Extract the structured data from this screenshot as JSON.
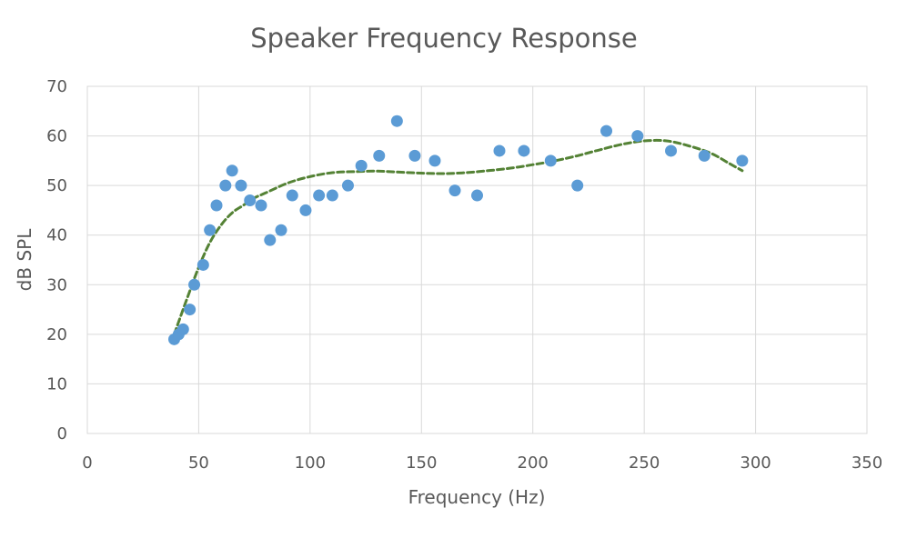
{
  "chart_data": {
    "type": "scatter",
    "title": "Speaker Frequency Response",
    "xlabel": "Frequency (Hz)",
    "ylabel": "dB SPL",
    "xlim": [
      0,
      350
    ],
    "ylim": [
      0,
      70
    ],
    "xticks": [
      0,
      50,
      100,
      150,
      200,
      250,
      300,
      350
    ],
    "yticks": [
      0,
      10,
      20,
      30,
      40,
      50,
      60,
      70
    ],
    "grid": true,
    "legend": "none",
    "colors": {
      "points": "#5b9bd5",
      "trendline": "#548235",
      "text": "#595959",
      "grid": "#d9d9d9"
    },
    "series": [
      {
        "points": [
          [
            39,
            19
          ],
          [
            41,
            20
          ],
          [
            43,
            21
          ],
          [
            46,
            25
          ],
          [
            48,
            30
          ],
          [
            52,
            34
          ],
          [
            55,
            41
          ],
          [
            58,
            46
          ],
          [
            62,
            50
          ],
          [
            65,
            53
          ],
          [
            69,
            50
          ],
          [
            73,
            47
          ],
          [
            78,
            46
          ],
          [
            82,
            39
          ],
          [
            87,
            41
          ],
          [
            92,
            48
          ],
          [
            98,
            45
          ],
          [
            104,
            48
          ],
          [
            110,
            48
          ],
          [
            117,
            50
          ],
          [
            123,
            54
          ],
          [
            131,
            56
          ],
          [
            139,
            63
          ],
          [
            147,
            56
          ],
          [
            156,
            55
          ],
          [
            165,
            49
          ],
          [
            175,
            48
          ],
          [
            185,
            57
          ],
          [
            196,
            57
          ],
          [
            208,
            55
          ],
          [
            220,
            50
          ],
          [
            233,
            61
          ],
          [
            247,
            60
          ],
          [
            262,
            57
          ],
          [
            277,
            56
          ],
          [
            294,
            55
          ]
        ]
      }
    ],
    "trendline": {
      "style": "dashed",
      "points": [
        [
          39,
          20
        ],
        [
          45,
          27.5
        ],
        [
          50,
          33.5
        ],
        [
          55,
          38.5
        ],
        [
          60,
          42
        ],
        [
          65,
          44.5
        ],
        [
          70,
          46
        ],
        [
          75,
          47.5
        ],
        [
          80,
          48.5
        ],
        [
          90,
          50.5
        ],
        [
          100,
          51.8
        ],
        [
          110,
          52.6
        ],
        [
          120,
          52.8
        ],
        [
          130,
          52.9
        ],
        [
          140,
          52.7
        ],
        [
          150,
          52.5
        ],
        [
          160,
          52.4
        ],
        [
          170,
          52.6
        ],
        [
          180,
          53.0
        ],
        [
          190,
          53.5
        ],
        [
          200,
          54.2
        ],
        [
          210,
          55.0
        ],
        [
          220,
          56.0
        ],
        [
          230,
          57.2
        ],
        [
          240,
          58.3
        ],
        [
          250,
          59.0
        ],
        [
          260,
          59.0
        ],
        [
          270,
          58.0
        ],
        [
          280,
          56.5
        ],
        [
          288,
          54.5
        ],
        [
          294,
          53
        ]
      ]
    }
  }
}
